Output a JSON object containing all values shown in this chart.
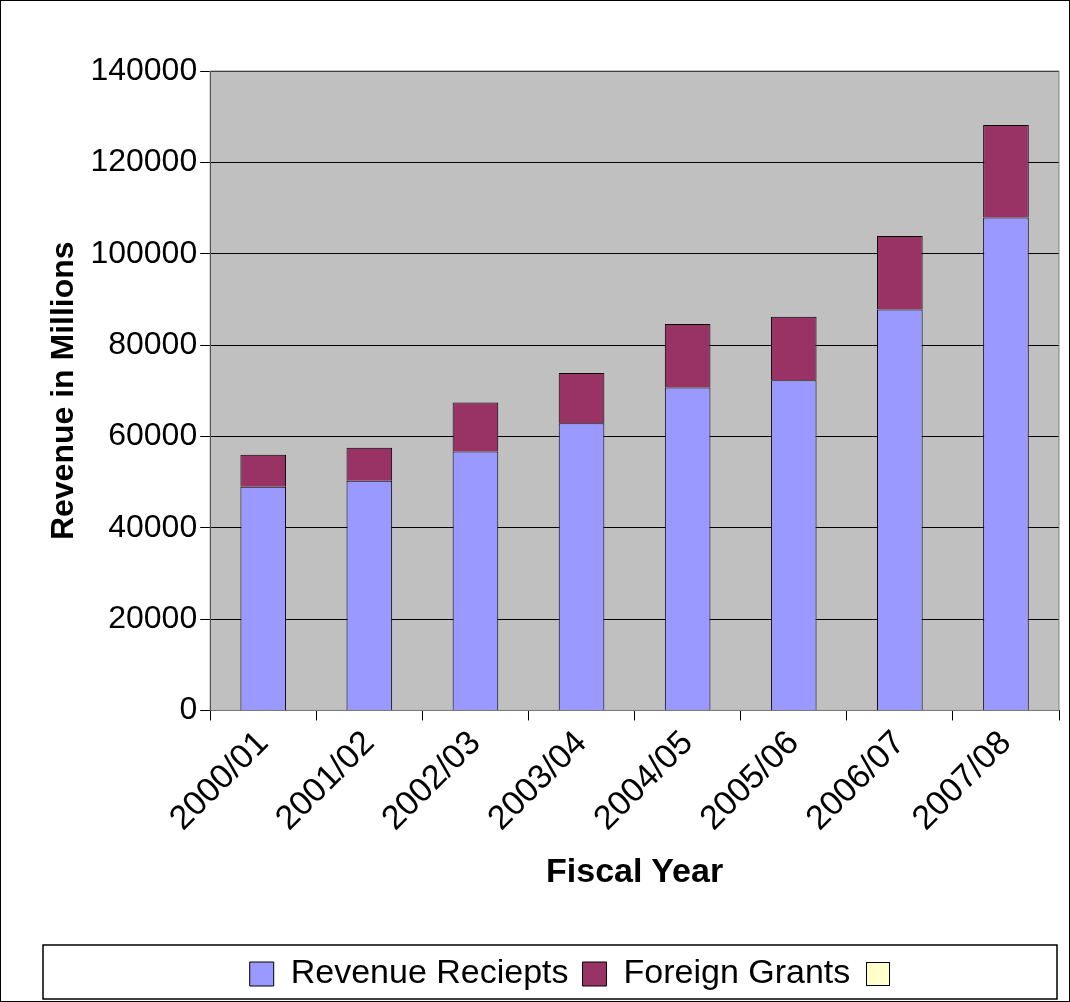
{
  "chart_data": {
    "type": "bar",
    "stacked": true,
    "xlabel": "Fiscal Year",
    "ylabel": "Revenue in Millions",
    "categories": [
      "2000/01",
      "2001/02",
      "2002/03",
      "2003/04",
      "2004/05",
      "2005/06",
      "2006/07",
      "2007/08"
    ],
    "series": [
      {
        "name": "Revenue Reciepts",
        "color": "#9999ff",
        "values": [
          49000,
          50300,
          56700,
          62900,
          70700,
          72300,
          87800,
          107900
        ]
      },
      {
        "name": "Foreign Grants",
        "color": "#993366",
        "values": [
          7000,
          7200,
          10700,
          11000,
          13900,
          13900,
          16100,
          20300
        ]
      }
    ],
    "ylim": [
      0,
      140000
    ],
    "yticks": [
      0,
      20000,
      40000,
      60000,
      80000,
      100000,
      120000,
      140000
    ],
    "grid": "y",
    "legend": "bottom"
  }
}
